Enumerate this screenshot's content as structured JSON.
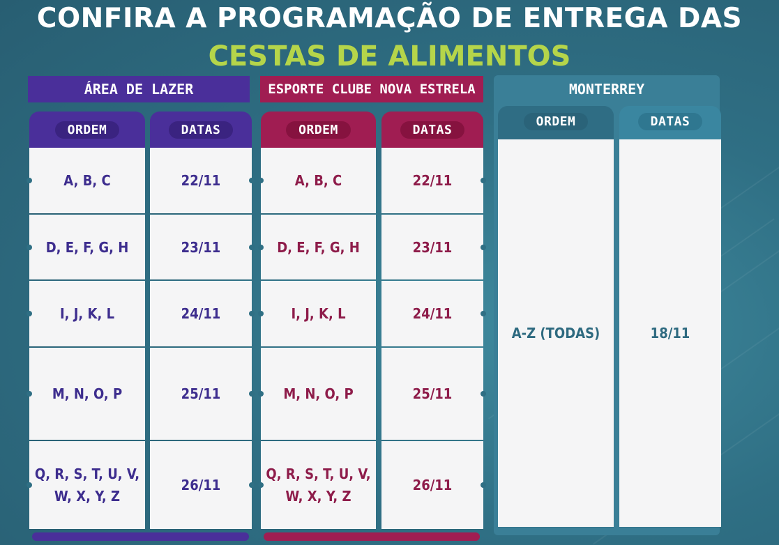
{
  "title": {
    "line1": "CONFIRA A PROGRAMAÇÃO DE ENTREGA DAS",
    "line2": "CESTAS DE ALIMENTOS"
  },
  "colors": {
    "purple": "#4a2f9a",
    "red": "#a01d52",
    "teal": "#3a7f97",
    "green_title": "#b5d54a"
  },
  "sections": {
    "area_lazer": {
      "name": "ÁREA DE LAZER",
      "ordem_label": "ORDEM",
      "datas_label": "DATAS",
      "rows": [
        {
          "ordem": "A, B, C",
          "data": "22/11"
        },
        {
          "ordem": "D, E, F, G, H",
          "data": "23/11"
        },
        {
          "ordem": "I, J, K, L",
          "data": "24/11"
        },
        {
          "ordem": "M, N, O, P",
          "data": "25/11"
        },
        {
          "ordem": "Q, R, S, T, U, V,\nW, X, Y, Z",
          "data": "26/11"
        }
      ]
    },
    "esporte_clube": {
      "name": "ESPORTE CLUBE NOVA ESTRELA",
      "ordem_label": "ORDEM",
      "datas_label": "DATAS",
      "rows": [
        {
          "ordem": "A, B, C",
          "data": "22/11"
        },
        {
          "ordem": "D, E, F, G, H",
          "data": "23/11"
        },
        {
          "ordem": "I, J, K, L",
          "data": "24/11"
        },
        {
          "ordem": "M, N, O, P",
          "data": "25/11"
        },
        {
          "ordem": "Q, R, S, T, U, V,\nW, X, Y, Z",
          "data": "26/11"
        }
      ]
    },
    "monterrey": {
      "name": "MONTERREY",
      "ordem_label": "ORDEM",
      "datas_label": "DATAS",
      "ordem": "A-Z (TODAS)",
      "data": "18/11"
    }
  }
}
